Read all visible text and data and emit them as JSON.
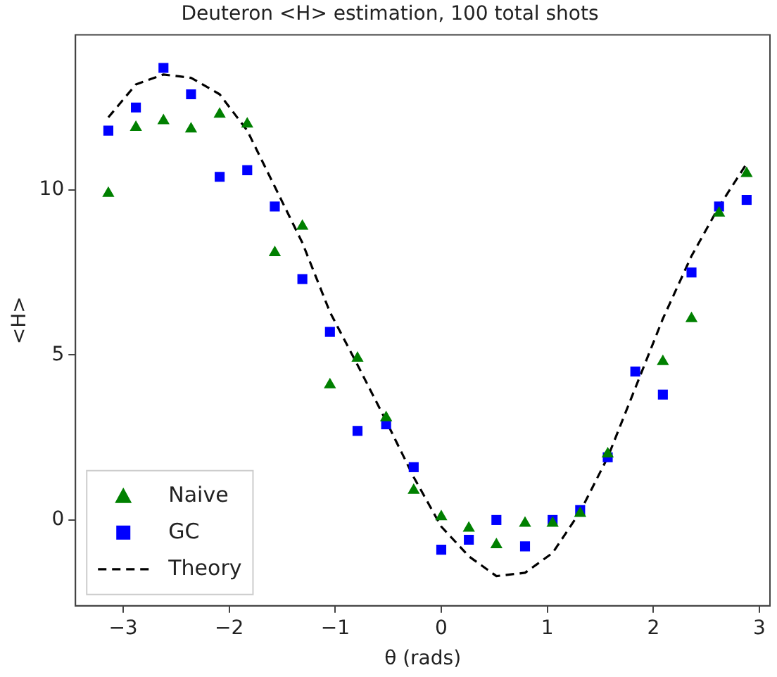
{
  "chart_data": {
    "type": "scatter",
    "title": "Deuteron <H> estimation, 100 total shots",
    "xlabel": "θ (rads)",
    "ylabel": "<H>",
    "x": [
      -3.14,
      -2.88,
      -2.62,
      -2.36,
      -2.09,
      -1.83,
      -1.57,
      -1.31,
      -1.05,
      -0.79,
      -0.52,
      -0.26,
      0,
      0.26,
      0.52,
      0.79,
      1.05,
      1.31,
      1.57,
      1.83,
      2.09,
      2.36,
      2.62,
      2.88
    ],
    "series": [
      {
        "name": "Naive",
        "marker": "triangle",
        "color": "#008000",
        "values": [
          9.9,
          11.9,
          12.1,
          11.85,
          12.3,
          12.0,
          8.1,
          8.9,
          4.1,
          4.9,
          3.1,
          0.9,
          0.1,
          -0.25,
          -0.75,
          -0.1,
          -0.1,
          0.2,
          2.0,
          null,
          4.8,
          6.1,
          9.3,
          10.5
        ]
      },
      {
        "name": "GC",
        "marker": "square",
        "color": "#0000ff",
        "values": [
          11.8,
          12.5,
          13.7,
          12.9,
          10.4,
          10.6,
          9.5,
          7.3,
          5.7,
          2.7,
          2.9,
          1.6,
          -0.9,
          -0.6,
          0.0,
          -0.8,
          0.0,
          0.3,
          1.9,
          4.5,
          3.8,
          7.5,
          9.5,
          9.7
        ]
      },
      {
        "name": "Theory",
        "type": "line",
        "marker": "none",
        "line_style": "dashed",
        "color": "#000000",
        "values": [
          12.2,
          13.2,
          13.5,
          13.4,
          12.9,
          11.8,
          10.1,
          8.4,
          6.3,
          4.7,
          3.0,
          1.3,
          -0.2,
          -1.1,
          -1.7,
          -1.6,
          -1.0,
          0.25,
          1.9,
          4.0,
          6.1,
          8.0,
          9.5,
          10.8
        ]
      }
    ],
    "xlim": [
      -3.45,
      3.1
    ],
    "ylim": [
      -2.6,
      14.7
    ],
    "xticks": [
      -3,
      -2,
      -1,
      0,
      1,
      2,
      3
    ],
    "yticks": [
      0,
      5,
      10
    ],
    "grid": false,
    "legend": "bottom left"
  }
}
